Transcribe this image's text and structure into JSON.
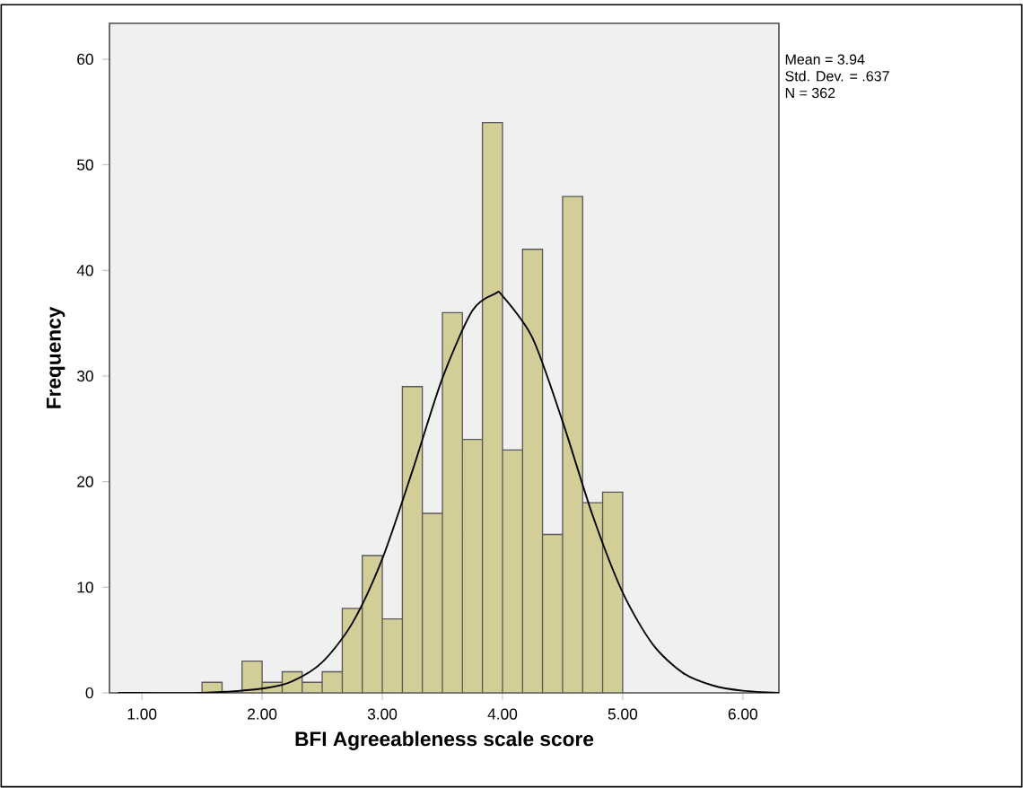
{
  "chart_data": {
    "type": "histogram",
    "xlabel": "BFI Agreeableness scale score",
    "ylabel": "Frequency",
    "bins": [
      1.5,
      1.667,
      1.833,
      2.0,
      2.167,
      2.333,
      2.5,
      2.667,
      2.833,
      3.0,
      3.167,
      3.333,
      3.5,
      3.667,
      3.833,
      4.0,
      4.167,
      4.333,
      4.5,
      4.667,
      4.833,
      5.0
    ],
    "values": [
      1,
      0,
      3,
      1,
      2,
      1,
      2,
      8,
      13,
      7,
      29,
      17,
      36,
      24,
      54,
      23,
      42,
      15,
      47,
      18,
      19
    ],
    "color": "#d3ce97",
    "series": [
      {
        "type": "line",
        "color": "#000000",
        "x": [
          0.8,
          1.0,
          1.5,
          2.0,
          2.25,
          2.5,
          2.75,
          3.0,
          3.25,
          3.5,
          3.75,
          3.94,
          4.0,
          4.25,
          4.5,
          4.75,
          5.0,
          5.25,
          5.5,
          5.75,
          6.0,
          6.3
        ],
        "values": [
          0,
          0,
          0,
          0.4,
          1.1,
          2.9,
          6.6,
          12.7,
          21.0,
          29.8,
          36.2,
          37.8,
          37.6,
          33.6,
          25.7,
          16.8,
          9.5,
          4.6,
          1.9,
          0.7,
          0.2,
          0
        ]
      }
    ],
    "xlim": [
      0.73,
      6.3
    ],
    "ylim": [
      0,
      63.4
    ],
    "xticks": [
      {
        "value": 1,
        "label": "1.00"
      },
      {
        "value": 2,
        "label": "2.00"
      },
      {
        "value": 3,
        "label": "3.00"
      },
      {
        "value": 4,
        "label": "4.00"
      },
      {
        "value": 5,
        "label": "5.00"
      },
      {
        "value": 6,
        "label": "6.00"
      }
    ],
    "yticks": [
      0,
      10,
      20,
      30,
      40,
      50,
      60
    ],
    "annotations": [
      "Mean = 3.94",
      "Std. Dev. = .637",
      "N = 362"
    ]
  }
}
